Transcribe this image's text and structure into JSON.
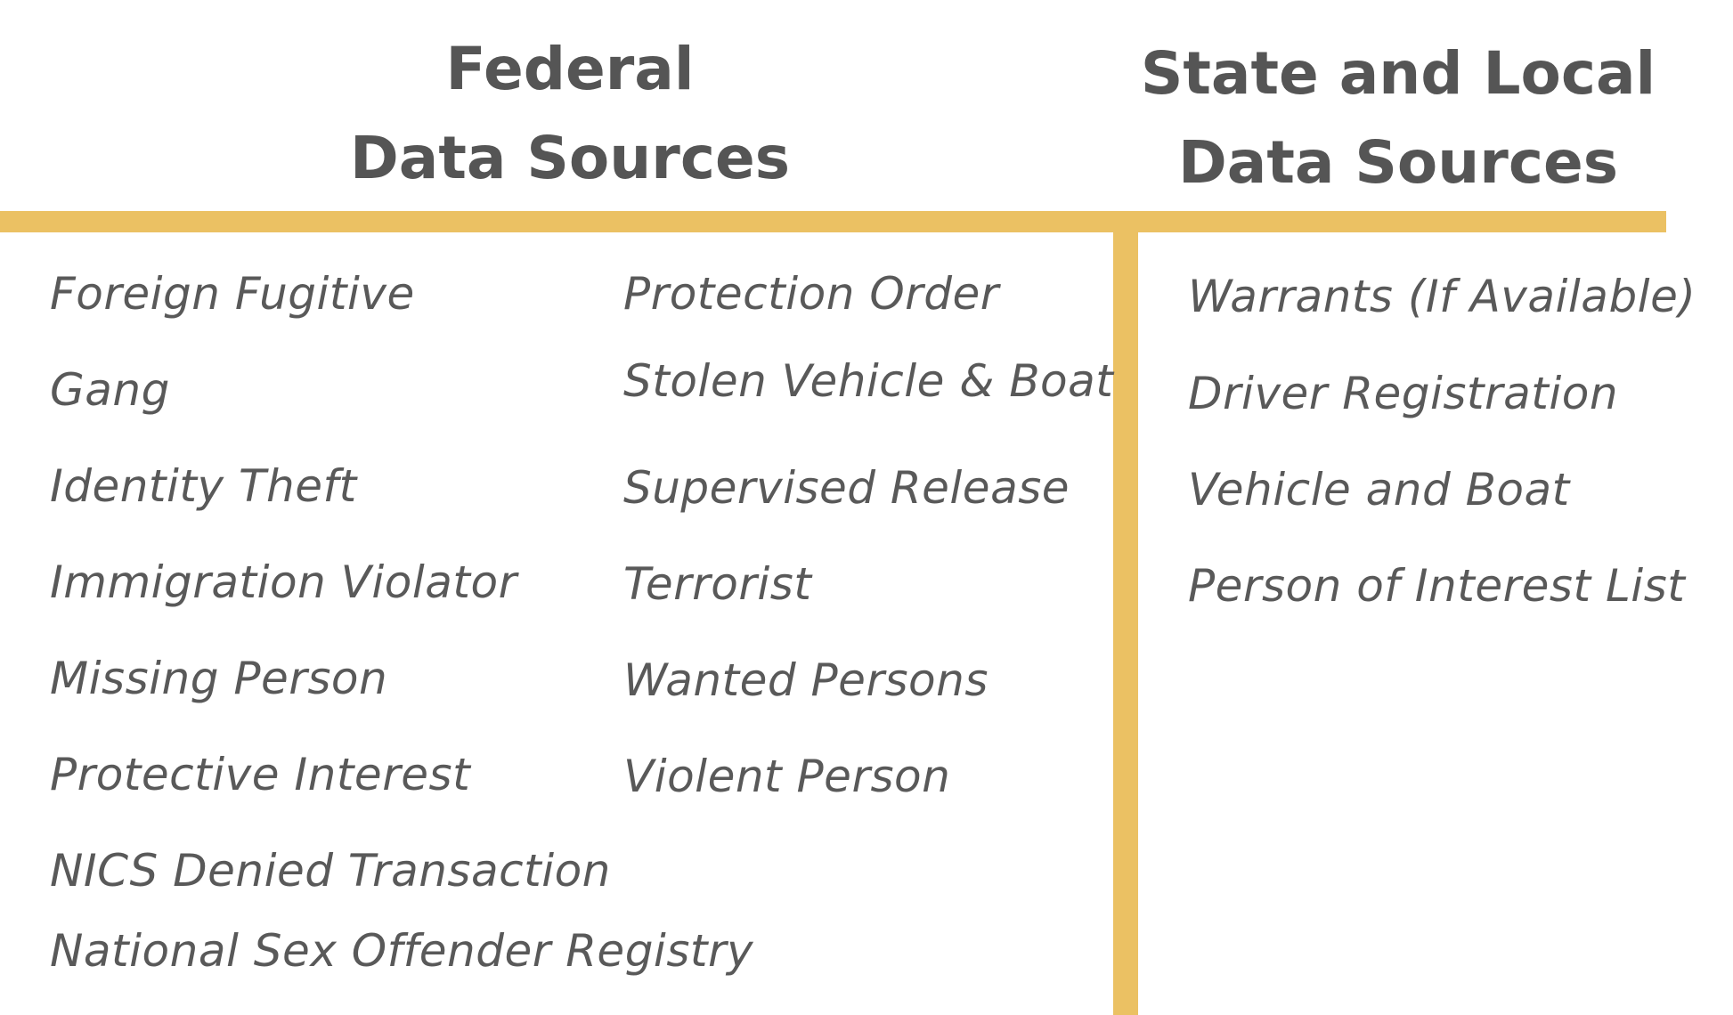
{
  "headings": {
    "federal": [
      "Federal",
      "Data Sources"
    ],
    "state": [
      "State and Local",
      "Data Sources"
    ]
  },
  "colors": {
    "accent": "#ebc163",
    "text": "#595959"
  },
  "federal_col1": [
    "Foreign Fugitive",
    "Gang",
    "Identity Theft",
    "Immigration Violator",
    "Missing Person",
    "Protective Interest",
    "NICS Denied Transaction",
    "National Sex Offender Registry"
  ],
  "federal_col2": [
    "Protection Order",
    "Stolen Vehicle & Boat",
    "Supervised Release",
    "Terrorist",
    "Wanted Persons",
    "Violent Person"
  ],
  "state_local": [
    "Warrants (If Available)",
    "Driver Registration",
    "Vehicle and Boat",
    "Person of Interest List"
  ]
}
